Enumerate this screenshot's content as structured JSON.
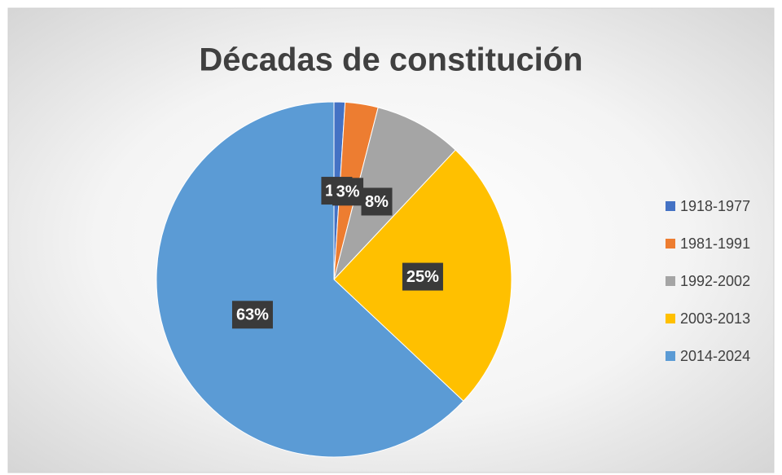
{
  "chart_data": {
    "type": "pie",
    "title": "Décadas de constitución",
    "categories": [
      "1918-1977",
      "1981-1991",
      "1992-2002",
      "2003-2013",
      "2014-2024"
    ],
    "values": [
      1,
      3,
      8,
      25,
      63
    ],
    "value_labels": [
      "1%",
      "3%",
      "8%",
      "25%",
      "63%"
    ],
    "colors": [
      "#4472c4",
      "#ed7d31",
      "#a5a5a5",
      "#ffc000",
      "#5b9bd5"
    ],
    "legend": "right"
  }
}
